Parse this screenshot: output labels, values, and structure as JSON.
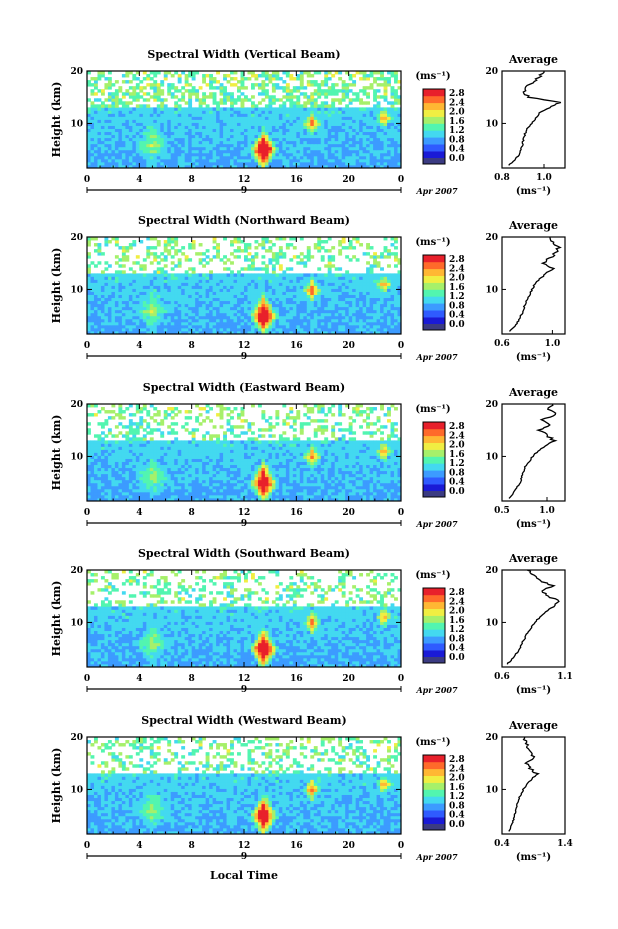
{
  "figure": {
    "xlabel": "Local Time",
    "date_label": "Apr 2007",
    "day_label": "9",
    "colorbar_unit": "(ms⁻¹)",
    "colorbar_ticks": [
      "0.0",
      "0.4",
      "0.8",
      "1.2",
      "1.6",
      "2.0",
      "2.4",
      "2.8"
    ],
    "avg_title": "Average",
    "avg_unit": "(ms⁻¹)",
    "colors": {
      "under": "#3b3b82",
      "scale": [
        "#1a1ad6",
        "#2f5bff",
        "#3c9bff",
        "#43d9f0",
        "#52f5b0",
        "#a6f06a",
        "#f0ee42",
        "#ffb733",
        "#ff6a2a",
        "#e8202b"
      ]
    }
  },
  "chart_data": [
    {
      "type": "heatmap",
      "title": "Spectral Width (Vertical Beam)",
      "ylabel": "Height (km)",
      "x_ticks": [
        "0",
        "4",
        "8",
        "12",
        "16",
        "20",
        "0"
      ],
      "y_ticks": [
        "20",
        "10"
      ],
      "xlim": [
        0,
        24
      ],
      "ylim": [
        1.5,
        20
      ],
      "value_range": [
        0.0,
        2.8
      ],
      "average_profile": {
        "xlim": [
          0.8,
          1.1
        ],
        "x_ticks": [
          "0.8",
          "1.0"
        ],
        "y_ticks": [
          "20",
          "10"
        ],
        "height": [
          2,
          3,
          4,
          5,
          6,
          7,
          8,
          9,
          10,
          11,
          12,
          13,
          14,
          15,
          16,
          17,
          18,
          19,
          20
        ],
        "value": [
          0.83,
          0.86,
          0.88,
          0.89,
          0.9,
          0.9,
          0.91,
          0.92,
          0.94,
          0.96,
          0.98,
          1.02,
          1.08,
          0.93,
          0.9,
          0.92,
          0.95,
          0.98,
          1.0
        ]
      }
    },
    {
      "type": "heatmap",
      "title": "Spectral Width (Northward Beam)",
      "ylabel": "Height (km)",
      "x_ticks": [
        "0",
        "4",
        "8",
        "12",
        "16",
        "20",
        "0"
      ],
      "y_ticks": [
        "20",
        "10"
      ],
      "xlim": [
        0,
        24
      ],
      "ylim": [
        1.5,
        20
      ],
      "value_range": [
        0.0,
        2.8
      ],
      "average_profile": {
        "xlim": [
          0.6,
          1.1
        ],
        "x_ticks": [
          "0.6",
          "1.0"
        ],
        "y_ticks": [
          "20",
          "10"
        ],
        "height": [
          2,
          3,
          4,
          5,
          6,
          7,
          8,
          9,
          10,
          11,
          12,
          13,
          14,
          15,
          16,
          17,
          18,
          19,
          20
        ],
        "value": [
          0.66,
          0.7,
          0.73,
          0.75,
          0.77,
          0.78,
          0.8,
          0.82,
          0.84,
          0.86,
          0.9,
          0.95,
          1.0,
          0.92,
          0.98,
          1.03,
          1.05,
          1.0,
          0.98
        ]
      }
    },
    {
      "type": "heatmap",
      "title": "Spectral Width (Eastward Beam)",
      "ylabel": "Height (km)",
      "x_ticks": [
        "0",
        "4",
        "8",
        "12",
        "16",
        "20",
        "0"
      ],
      "y_ticks": [
        "20",
        "10"
      ],
      "xlim": [
        0,
        24
      ],
      "ylim": [
        1.5,
        20
      ],
      "value_range": [
        0.0,
        2.8
      ],
      "average_profile": {
        "xlim": [
          0.5,
          1.2
        ],
        "x_ticks": [
          "0.5",
          "1.0"
        ],
        "y_ticks": [
          "20",
          "10"
        ],
        "height": [
          2,
          3,
          4,
          5,
          6,
          7,
          8,
          9,
          10,
          11,
          12,
          13,
          14,
          15,
          16,
          17,
          18,
          19,
          20
        ],
        "value": [
          0.58,
          0.62,
          0.66,
          0.7,
          0.72,
          0.74,
          0.76,
          0.8,
          0.84,
          0.9,
          0.98,
          1.08,
          1.0,
          0.92,
          1.05,
          0.95,
          1.1,
          1.02,
          1.06
        ]
      }
    },
    {
      "type": "heatmap",
      "title": "Spectral Width (Southward Beam)",
      "ylabel": "Height (km)",
      "x_ticks": [
        "0",
        "4",
        "8",
        "12",
        "16",
        "20",
        "0"
      ],
      "y_ticks": [
        "20",
        "10"
      ],
      "xlim": [
        0,
        24
      ],
      "ylim": [
        1.5,
        20
      ],
      "value_range": [
        0.0,
        2.8
      ],
      "average_profile": {
        "xlim": [
          0.6,
          1.1
        ],
        "x_ticks": [
          "0.6",
          "1.1"
        ],
        "y_ticks": [
          "20",
          "10"
        ],
        "height": [
          2,
          3,
          4,
          5,
          6,
          7,
          8,
          9,
          10,
          11,
          12,
          13,
          14,
          15,
          16,
          17,
          18,
          19,
          20
        ],
        "value": [
          0.64,
          0.68,
          0.71,
          0.74,
          0.76,
          0.78,
          0.8,
          0.83,
          0.86,
          0.9,
          0.95,
          1.0,
          1.06,
          0.96,
          0.92,
          1.0,
          0.9,
          0.85,
          0.8
        ]
      }
    },
    {
      "type": "heatmap",
      "title": "Spectral Width (Westward Beam)",
      "ylabel": "Height (km)",
      "x_ticks": [
        "0",
        "4",
        "8",
        "12",
        "16",
        "20",
        "0"
      ],
      "y_ticks": [
        "20",
        "10"
      ],
      "xlim": [
        0,
        24
      ],
      "ylim": [
        1.5,
        20
      ],
      "value_range": [
        0.0,
        2.8
      ],
      "average_profile": {
        "xlim": [
          0.4,
          1.4
        ],
        "x_ticks": [
          "0.4",
          "1.4"
        ],
        "y_ticks": [
          "20",
          "10"
        ],
        "height": [
          2,
          3,
          4,
          5,
          6,
          7,
          8,
          9,
          10,
          11,
          12,
          13,
          14,
          15,
          16,
          17,
          18,
          19,
          20
        ],
        "value": [
          0.5,
          0.55,
          0.58,
          0.6,
          0.62,
          0.64,
          0.66,
          0.7,
          0.74,
          0.8,
          0.88,
          0.95,
          0.85,
          0.8,
          0.92,
          0.85,
          0.8,
          0.78,
          0.76
        ]
      }
    }
  ]
}
